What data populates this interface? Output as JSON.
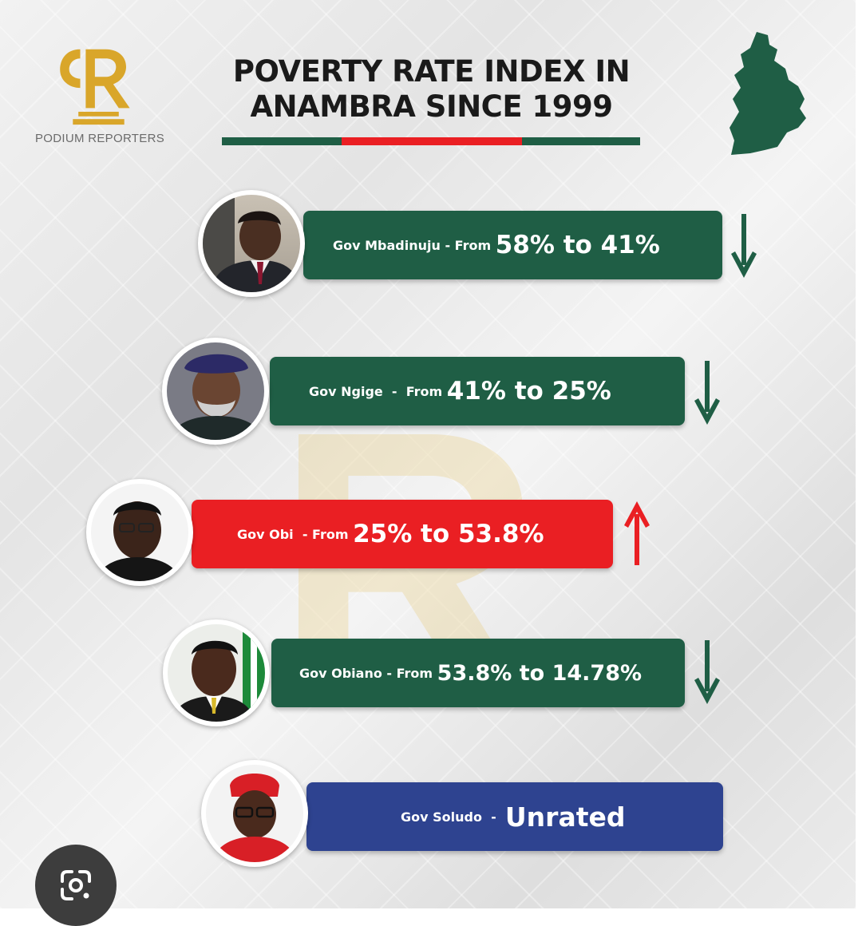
{
  "header": {
    "brand": "PODIUM REPORTERS",
    "title_line1": "POVERTY RATE INDEX IN",
    "title_line2": "ANAMBRA SINCE 1999"
  },
  "colors": {
    "green": "#1f5e45",
    "red": "#ea1f23",
    "blue": "#2e4390",
    "gold": "#d9a62a"
  },
  "rows": [
    {
      "name": "Gov Mbadinuju",
      "sep": " - ",
      "from": "From ",
      "range": "58% to 41%",
      "trend": "down"
    },
    {
      "name": "Gov Ngige",
      "sep": "  -  ",
      "from": "From ",
      "range": "41% to 25%",
      "trend": "down"
    },
    {
      "name": "Gov Obi",
      "sep": "  - ",
      "from": "From ",
      "range": "25% to 53.8%",
      "trend": "up"
    },
    {
      "name": "Gov Obiano",
      "sep": " - ",
      "from": "From ",
      "range": "53.8% to 14.78%",
      "trend": "down"
    },
    {
      "name": "Gov Soludo",
      "sep": "  -  ",
      "from": "",
      "range": "Unrated",
      "trend": "none"
    }
  ],
  "icons": {
    "logo": "podium-reporters-logo-icon",
    "map": "anambra-map-icon",
    "lens": "google-lens-icon"
  }
}
